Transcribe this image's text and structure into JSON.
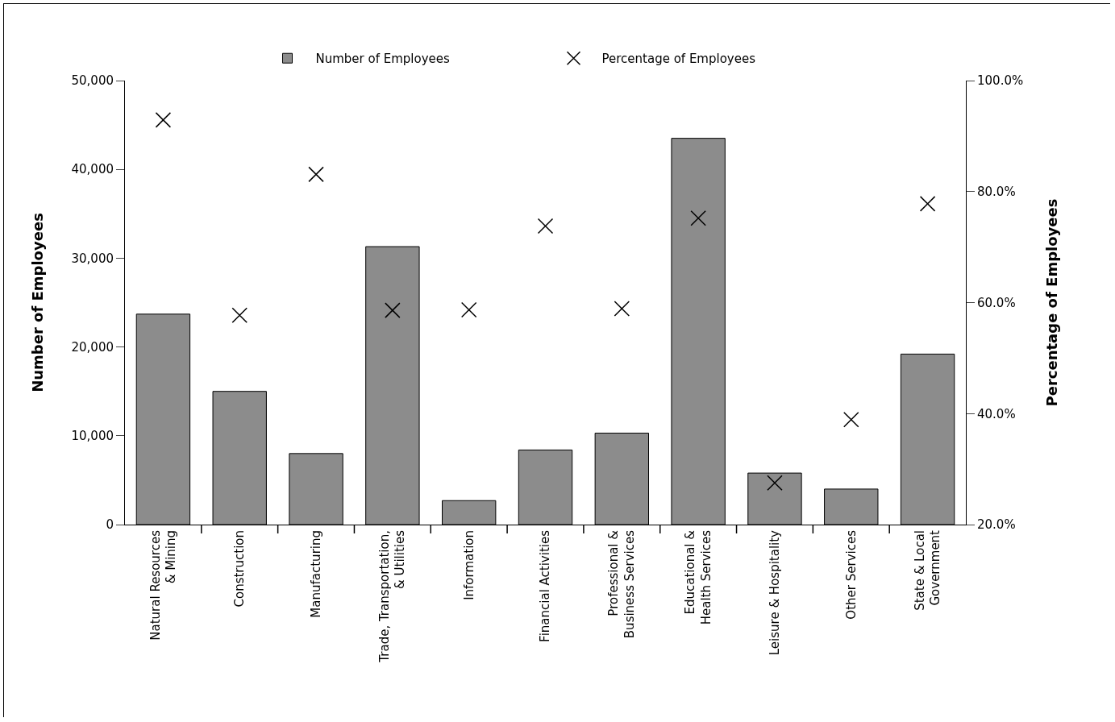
{
  "chart_data": {
    "type": "bar",
    "categories": [
      "Natural Resources\n& Mining",
      "Construction",
      "Manufacturing",
      "Trade, Transportation,\n& Utilities",
      "Information",
      "Financial Activities",
      "Professional &\nBusiness Services",
      "Educational &\nHealth Services",
      "Leisure & Hospitality",
      "Other Services",
      "State & Local\nGovernment"
    ],
    "series": [
      {
        "name": "Number of Employees",
        "color": "#8c8c8c",
        "values": [
          23700,
          15000,
          8000,
          31300,
          2700,
          8400,
          10300,
          43500,
          5800,
          4000,
          19200
        ]
      },
      {
        "name": "Percentage of Employees",
        "type": "scatter",
        "axis": "y2",
        "marker": "cross",
        "color": "#000000",
        "values": [
          92.9,
          57.7,
          83.1,
          58.6,
          58.7,
          73.8,
          58.9,
          75.2,
          27.5,
          38.9,
          77.8
        ]
      }
    ],
    "ylabel": "Number of Employees",
    "y2label": "Percentage of Employees",
    "ylim": [
      0,
      50000
    ],
    "yticks": [
      {
        "value": 0,
        "label": "0"
      },
      {
        "value": 10000,
        "label": "10,000"
      },
      {
        "value": 20000,
        "label": "20,000"
      },
      {
        "value": 30000,
        "label": "30,000"
      },
      {
        "value": 40000,
        "label": "40,000"
      },
      {
        "value": 50000,
        "label": "50,000"
      }
    ],
    "y2lim": [
      20,
      100
    ],
    "y2ticks": [
      {
        "value": 20,
        "label": "20.0%"
      },
      {
        "value": 40,
        "label": "40.0%"
      },
      {
        "value": 60,
        "label": "60.0%"
      },
      {
        "value": 80,
        "label": "80.0%"
      },
      {
        "value": 100,
        "label": "100.0%"
      }
    ],
    "legend": "top",
    "grid": false
  }
}
